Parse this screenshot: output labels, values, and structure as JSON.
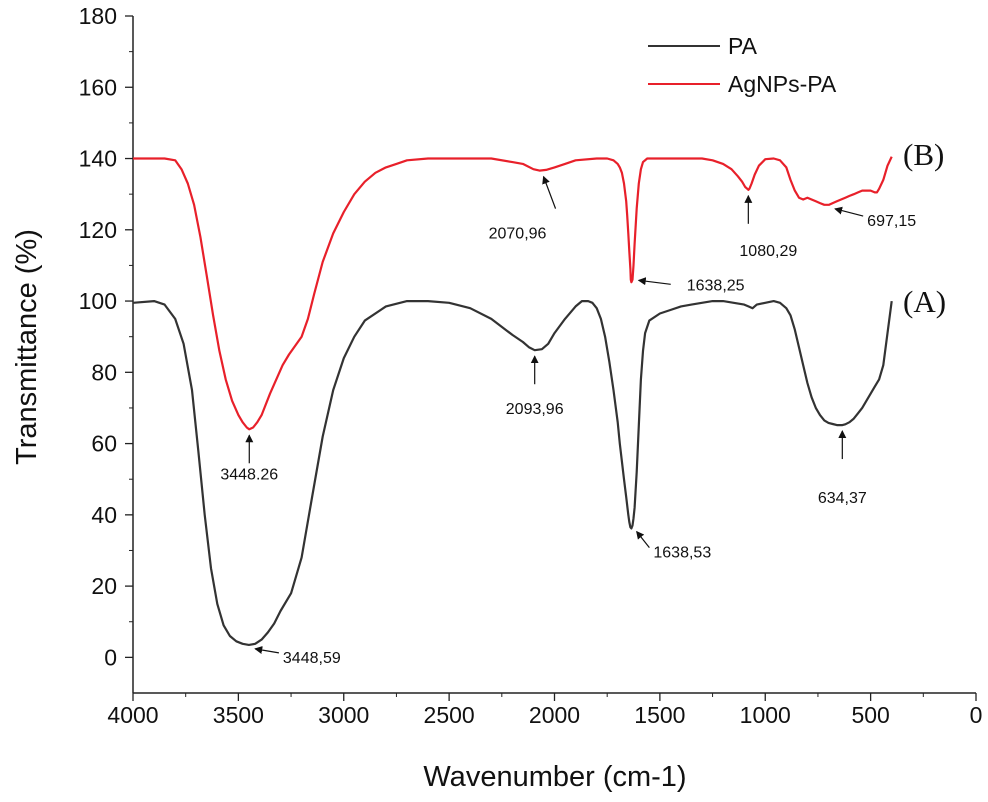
{
  "chart_data": {
    "type": "line",
    "title": "",
    "xlabel": "Wavenumber (cm-1)",
    "ylabel": "Transmittance (%)",
    "xlim": [
      4000,
      0
    ],
    "ylim": [
      -10,
      180
    ],
    "x_ticks": [
      "4000",
      "3500",
      "3000",
      "2500",
      "2000",
      "1500",
      "1000",
      "500",
      "0"
    ],
    "y_ticks": [
      "0",
      "20",
      "40",
      "60",
      "80",
      "100",
      "120",
      "140",
      "160",
      "180"
    ],
    "grid": false,
    "legend_position": "top-right",
    "series": [
      {
        "name": "PA",
        "label": "(A)",
        "color": "#333333",
        "x": [
          4000,
          3900,
          3850,
          3800,
          3760,
          3720,
          3690,
          3660,
          3630,
          3600,
          3570,
          3540,
          3510,
          3480,
          3450,
          3420,
          3390,
          3360,
          3330,
          3300,
          3250,
          3200,
          3150,
          3100,
          3050,
          3000,
          2950,
          2900,
          2800,
          2700,
          2600,
          2500,
          2400,
          2300,
          2200,
          2150,
          2120,
          2094,
          2060,
          2030,
          2000,
          1950,
          1900,
          1870,
          1840,
          1820,
          1800,
          1780,
          1760,
          1740,
          1720,
          1700,
          1690,
          1680,
          1670,
          1660,
          1650,
          1645,
          1640,
          1635,
          1630,
          1625,
          1620,
          1610,
          1600,
          1590,
          1580,
          1570,
          1550,
          1500,
          1450,
          1400,
          1350,
          1300,
          1250,
          1200,
          1150,
          1100,
          1080,
          1060,
          1040,
          1000,
          960,
          930,
          900,
          880,
          860,
          840,
          820,
          800,
          780,
          760,
          740,
          720,
          700,
          680,
          660,
          640,
          634,
          620,
          600,
          580,
          560,
          540,
          520,
          500,
          480,
          460,
          440,
          420,
          400
        ],
        "values": [
          99.5,
          100,
          99,
          95,
          88,
          75,
          58,
          40,
          25,
          15,
          9,
          6,
          4.5,
          3.8,
          3.5,
          3.8,
          5,
          7,
          9.5,
          13,
          18,
          28,
          45,
          62,
          75,
          84,
          90,
          94.5,
          98.5,
          100,
          100,
          99.5,
          98,
          95,
          90.5,
          88.5,
          87,
          86.2,
          86.5,
          88,
          91,
          95,
          98.5,
          100,
          100,
          99.5,
          98,
          95,
          90,
          83,
          75,
          66,
          60,
          55,
          50,
          45,
          40,
          38,
          36.5,
          36.2,
          37,
          39,
          42,
          52,
          65,
          78,
          86,
          91,
          94.5,
          96.5,
          97.5,
          98.5,
          99,
          99.5,
          100,
          100,
          99.5,
          99,
          98.5,
          98,
          99,
          99.5,
          100,
          99.5,
          98,
          96,
          92,
          87,
          82,
          77,
          73,
          70,
          68,
          66.5,
          65.8,
          65.5,
          65.2,
          65.2,
          65.2,
          65.4,
          66,
          67,
          68.5,
          70,
          72,
          74,
          76,
          78,
          82,
          91,
          100
        ],
        "annotations": [
          {
            "text": "3448,59",
            "x": 3448.59
          },
          {
            "text": "2093,96",
            "x": 2093.96
          },
          {
            "text": "1638,53",
            "x": 1638.53
          },
          {
            "text": "634,37",
            "x": 634.37
          }
        ]
      },
      {
        "name": "AgNPs-PA",
        "label": "(B)",
        "color": "#e8202a",
        "x": [
          4000,
          3850,
          3800,
          3770,
          3740,
          3710,
          3680,
          3650,
          3620,
          3590,
          3560,
          3530,
          3500,
          3480,
          3460,
          3448,
          3430,
          3410,
          3390,
          3370,
          3350,
          3320,
          3290,
          3260,
          3230,
          3200,
          3170,
          3140,
          3100,
          3050,
          3000,
          2950,
          2900,
          2850,
          2800,
          2750,
          2700,
          2600,
          2500,
          2400,
          2300,
          2200,
          2150,
          2100,
          2071,
          2040,
          2000,
          1950,
          1900,
          1800,
          1750,
          1720,
          1700,
          1690,
          1680,
          1670,
          1660,
          1655,
          1650,
          1645,
          1640,
          1638,
          1635,
          1630,
          1625,
          1620,
          1610,
          1600,
          1590,
          1580,
          1560,
          1500,
          1400,
          1300,
          1250,
          1200,
          1160,
          1130,
          1110,
          1095,
          1085,
          1080,
          1075,
          1065,
          1050,
          1030,
          1000,
          960,
          930,
          900,
          880,
          860,
          840,
          820,
          800,
          780,
          760,
          740,
          720,
          700,
          697,
          680,
          660,
          640,
          620,
          600,
          580,
          560,
          540,
          520,
          500,
          480,
          470,
          460,
          440,
          420,
          400
        ],
        "values": [
          140,
          140,
          139.5,
          137,
          133,
          127,
          118,
          107,
          96,
          86,
          78,
          72,
          68,
          66,
          64.5,
          64,
          64.5,
          66,
          68,
          71,
          74,
          78,
          82,
          85,
          87.5,
          90,
          95,
          102,
          111,
          119,
          125,
          130,
          133.5,
          136,
          137.5,
          138.5,
          139.5,
          140,
          140,
          140,
          140,
          139,
          138.5,
          137,
          136.6,
          136.8,
          137.5,
          138.5,
          139.5,
          140,
          140,
          139.5,
          138.5,
          137.5,
          136,
          133,
          128,
          124,
          119,
          114,
          109,
          106,
          105.3,
          106,
          110,
          116,
          126,
          133,
          137,
          139,
          140,
          140,
          140,
          140,
          139.5,
          138.5,
          137,
          135,
          133.5,
          132,
          131.5,
          131.2,
          131.5,
          133,
          135.5,
          138,
          139.8,
          140,
          139.5,
          137.5,
          134,
          131,
          129,
          128.5,
          129,
          128.5,
          128,
          127.5,
          127,
          127,
          127,
          127.5,
          128,
          128.5,
          129,
          129.5,
          130,
          130.5,
          131,
          131,
          131,
          130.5,
          130.5,
          131.5,
          134,
          138,
          140.5
        ],
        "annotations": [
          {
            "text": "3448.26",
            "x": 3448.26
          },
          {
            "text": "2070,96",
            "x": 2070.96
          },
          {
            "text": "1638,25",
            "x": 1638.25
          },
          {
            "text": "1080,29",
            "x": 1080.29
          },
          {
            "text": "697,15",
            "x": 697.15
          }
        ]
      }
    ]
  }
}
